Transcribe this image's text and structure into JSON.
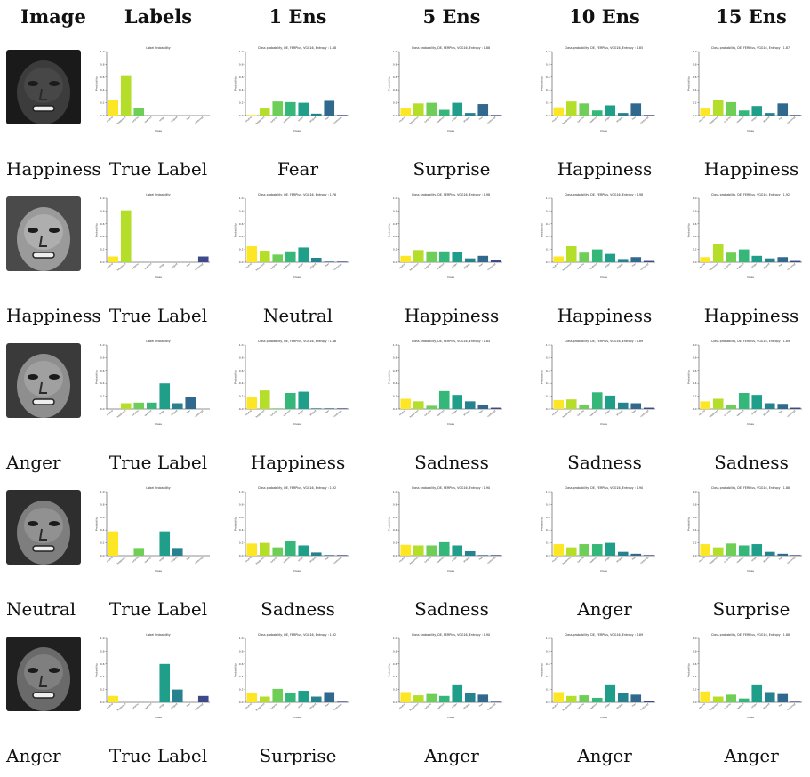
{
  "headers": [
    "Image",
    "Labels",
    "1 Ens",
    "5 Ens",
    "10 Ens",
    "15 Ens"
  ],
  "class_names": [
    "neutral",
    "happiness",
    "surprise",
    "sadness",
    "anger",
    "disgust",
    "fear",
    "contempt"
  ],
  "axis": {
    "ylabel": "Probability",
    "xlabel": "Class",
    "yticks": [
      "0.0",
      "0.2",
      "0.4",
      "0.6",
      "0.8",
      "1.0"
    ],
    "ylim": [
      0,
      1
    ]
  },
  "colors": [
    "#fde725",
    "#b5de2b",
    "#6ece58",
    "#35b779",
    "#1f9e89",
    "#26828e",
    "#31688e",
    "#3e4989"
  ],
  "rows": [
    {
      "true_label": "Happiness",
      "face": {
        "skin": "#3c3c3c",
        "hair": "#1a1a1a",
        "shade": "#555555"
      },
      "cells": [
        {
          "title": "Label Probability",
          "caption": "True Label",
          "values": [
            0.25,
            0.63,
            0.12,
            0,
            0,
            0,
            0,
            0
          ]
        },
        {
          "title": "Class probability, DE, FERPlus, VGG16, Entropy : 1.88",
          "caption": "Fear",
          "values": [
            0.01,
            0.11,
            0.22,
            0.21,
            0.2,
            0.03,
            0.23,
            0.01
          ]
        },
        {
          "title": "Class probability, DE, FERPlus, VGG16, Entropy : 1.88",
          "caption": "Surprise",
          "values": [
            0.12,
            0.19,
            0.2,
            0.09,
            0.2,
            0.04,
            0.18,
            0.01
          ]
        },
        {
          "title": "Class probability, DE, FERPlus, VGG16, Entropy : 1.85",
          "caption": "Happiness",
          "values": [
            0.13,
            0.22,
            0.19,
            0.08,
            0.16,
            0.04,
            0.19,
            0.01
          ]
        },
        {
          "title": "Class probability, DE, FERPlus, VGG16, Entropy : 1.87",
          "caption": "Happiness",
          "values": [
            0.11,
            0.24,
            0.21,
            0.08,
            0.15,
            0.04,
            0.19,
            0.01
          ]
        }
      ]
    },
    {
      "true_label": "Happiness",
      "face": {
        "skin": "#9a9a9a",
        "hair": "#4a4a4a",
        "shade": "#c8c8c8"
      },
      "cells": [
        {
          "title": "Label Probability",
          "caption": "True Label",
          "values": [
            0.09,
            0.81,
            0,
            0,
            0,
            0,
            0,
            0.09
          ]
        },
        {
          "title": "Class probability, DE, FERPlus, VGG16, Entropy : 1.76",
          "caption": "Neutral",
          "values": [
            0.25,
            0.18,
            0.12,
            0.17,
            0.23,
            0.07,
            0.01,
            0.01
          ]
        },
        {
          "title": "Class probability, DE, FERPlus, VGG16, Entropy : 1.98",
          "caption": "Happiness",
          "values": [
            0.1,
            0.19,
            0.17,
            0.17,
            0.16,
            0.06,
            0.1,
            0.03
          ]
        },
        {
          "title": "Class probability, DE, FERPlus, VGG16, Entropy : 1.98",
          "caption": "Happiness",
          "values": [
            0.09,
            0.25,
            0.15,
            0.2,
            0.13,
            0.05,
            0.08,
            0.02
          ]
        },
        {
          "title": "Class probability, DE, FERPlus, VGG16, Entropy : 1.92",
          "caption": "Happiness",
          "values": [
            0.08,
            0.29,
            0.15,
            0.2,
            0.1,
            0.06,
            0.08,
            0.02
          ]
        }
      ]
    },
    {
      "true_label": "Anger",
      "face": {
        "skin": "#8e8e8e",
        "hair": "#3a3a3a",
        "shade": "#b5b5b5"
      },
      "cells": [
        {
          "title": "Label Probability",
          "caption": "True Label",
          "values": [
            0,
            0.09,
            0.1,
            0.1,
            0.4,
            0.09,
            0.19,
            0
          ]
        },
        {
          "title": "Class probability, DE, FERPlus, VGG16, Entropy : 1.46",
          "caption": "Happiness",
          "values": [
            0.19,
            0.29,
            0.01,
            0.25,
            0.27,
            0.01,
            0.01,
            0.01
          ]
        },
        {
          "title": "Class probability, DE, FERPlus, VGG16, Entropy : 1.84",
          "caption": "Sadness",
          "values": [
            0.16,
            0.12,
            0.05,
            0.28,
            0.22,
            0.12,
            0.07,
            0.02
          ]
        },
        {
          "title": "Class probability, DE, FERPlus, VGG16, Entropy : 1.89",
          "caption": "Sadness",
          "values": [
            0.14,
            0.15,
            0.06,
            0.26,
            0.21,
            0.1,
            0.09,
            0.02
          ]
        },
        {
          "title": "Class probability, DE, FERPlus, VGG16, Entropy : 1.89",
          "caption": "Sadness",
          "values": [
            0.12,
            0.16,
            0.06,
            0.25,
            0.22,
            0.09,
            0.08,
            0.02
          ]
        }
      ]
    },
    {
      "true_label": "Neutral",
      "face": {
        "skin": "#7e7e7e",
        "hair": "#2e2e2e",
        "shade": "#a8a8a8"
      },
      "cells": [
        {
          "title": "Label Probability",
          "caption": "True Label",
          "values": [
            0.38,
            0,
            0.12,
            0,
            0.38,
            0.12,
            0,
            0
          ]
        },
        {
          "title": "Class probability, DE, FERPlus, VGG16, Entropy : 1.92",
          "caption": "Sadness",
          "values": [
            0.19,
            0.2,
            0.13,
            0.23,
            0.16,
            0.05,
            0.01,
            0.01
          ]
        },
        {
          "title": "Class probability, DE, FERPlus, VGG16, Entropy : 1.90",
          "caption": "Sadness",
          "values": [
            0.17,
            0.16,
            0.16,
            0.21,
            0.16,
            0.07,
            0.01,
            0.01
          ]
        },
        {
          "title": "Class probability, DE, FERPlus, VGG16, Entropy : 1.90",
          "caption": "Anger",
          "values": [
            0.18,
            0.13,
            0.18,
            0.18,
            0.2,
            0.06,
            0.03,
            0.01
          ]
        },
        {
          "title": "Class probability, DE, FERPlus, VGG16, Entropy : 1.88",
          "caption": "Surprise",
          "values": [
            0.18,
            0.13,
            0.19,
            0.16,
            0.18,
            0.06,
            0.03,
            0.01
          ]
        }
      ]
    },
    {
      "true_label": "Anger",
      "face": {
        "skin": "#6a6a6a",
        "hair": "#202020",
        "shade": "#9a9a9a"
      },
      "cells": [
        {
          "title": "Label Probability",
          "caption": "True Label",
          "values": [
            0.1,
            0,
            0,
            0,
            0.6,
            0.2,
            0,
            0.1
          ]
        },
        {
          "title": "Class probability, DE, FERPlus, VGG16, Entropy : 1.92",
          "caption": "Surprise",
          "values": [
            0.15,
            0.09,
            0.21,
            0.14,
            0.18,
            0.09,
            0.16,
            0.01
          ]
        },
        {
          "title": "Class probability, DE, FERPlus, VGG16, Entropy : 1.90",
          "caption": "Anger",
          "values": [
            0.16,
            0.11,
            0.13,
            0.1,
            0.28,
            0.15,
            0.12,
            0.01
          ]
        },
        {
          "title": "Class probability, DE, FERPlus, VGG16, Entropy : 1.89",
          "caption": "Anger",
          "values": [
            0.16,
            0.1,
            0.11,
            0.07,
            0.28,
            0.15,
            0.12,
            0.02
          ]
        },
        {
          "title": "Class probability, DE, FERPlus, VGG16, Entropy : 1.88",
          "caption": "Anger",
          "values": [
            0.17,
            0.09,
            0.12,
            0.06,
            0.28,
            0.16,
            0.13,
            0.01
          ]
        }
      ]
    }
  ],
  "chart_data": {
    "type": "bar",
    "note_grid": "5 rows x 5 bar charts, categories are the 8 FERPlus classes",
    "categories": [
      "neutral",
      "happiness",
      "surprise",
      "sadness",
      "anger",
      "disgust",
      "fear",
      "contempt"
    ],
    "ylim": [
      0,
      1
    ],
    "xlabel": "Class",
    "ylabel": "Probability",
    "grid": false
  }
}
